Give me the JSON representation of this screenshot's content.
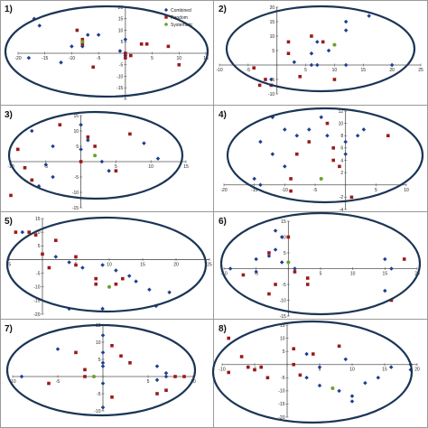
{
  "colors": {
    "combined": "#1f3f8f",
    "random": "#9b1a1a",
    "systematic": "#6aa12c",
    "ellipse": "#1b3556",
    "axis": "#555555",
    "frame": "#9a9a9a"
  },
  "legend": [
    "Combined",
    "Random",
    "Systematic"
  ],
  "chart_data": [
    {
      "type": "scatter",
      "label": "1)",
      "xlim": [
        -20,
        15
      ],
      "ylim": [
        -20,
        20
      ],
      "xticks": [
        -20,
        -15,
        -10,
        -5,
        0,
        5,
        10,
        15
      ],
      "yticks": [
        -20,
        -15,
        -10,
        -5,
        0,
        5,
        10,
        15,
        20
      ],
      "xticklabels": [
        "-20",
        "-15",
        "-10",
        "-5",
        "",
        "5",
        "10",
        "15"
      ],
      "yticklabels": [
        "",
        "-15",
        "-10",
        "-5",
        "",
        "5",
        "10",
        "15",
        "20"
      ],
      "series": [
        {
          "name": "Combined",
          "points": [
            [
              -17,
              15
            ],
            [
              -16,
              12
            ],
            [
              -7,
              8
            ],
            [
              -5,
              8
            ],
            [
              0,
              6
            ],
            [
              -10,
              3
            ],
            [
              -8,
              3
            ],
            [
              0,
              -1
            ],
            [
              -1,
              1
            ],
            [
              -18,
              -2
            ],
            [
              -12,
              -4
            ]
          ]
        },
        {
          "name": "Random",
          "points": [
            [
              -9,
              10
            ],
            [
              -8,
              6
            ],
            [
              -8,
              4
            ],
            [
              3,
              4
            ],
            [
              4,
              4
            ],
            [
              8,
              3
            ],
            [
              0,
              0
            ],
            [
              0,
              -2
            ],
            [
              1,
              -1
            ],
            [
              -6,
              -6
            ],
            [
              10,
              -5
            ]
          ]
        },
        {
          "name": "Systematic",
          "points": [
            [
              -8,
              5
            ]
          ]
        }
      ]
    },
    {
      "type": "scatter",
      "label": "2)",
      "xlim": [
        -10,
        25
      ],
      "ylim": [
        -10,
        20
      ],
      "xticks": [
        -10,
        -5,
        0,
        5,
        10,
        15,
        20,
        25
      ],
      "yticks": [
        -10,
        -5,
        0,
        5,
        10,
        15,
        20
      ],
      "xticklabels": [
        "-10",
        "-5",
        "",
        "5",
        "10",
        "15",
        "20",
        "25"
      ],
      "yticklabels": [
        "-10",
        "-5",
        "",
        "5",
        "10",
        "15",
        "20"
      ],
      "series": [
        {
          "name": "Combined",
          "points": [
            [
              16,
              17
            ],
            [
              12,
              15
            ],
            [
              12,
              12
            ],
            [
              7,
              8
            ],
            [
              9,
              5
            ],
            [
              6,
              0
            ],
            [
              7,
              0
            ],
            [
              12,
              0
            ],
            [
              20,
              0
            ],
            [
              3,
              1
            ],
            [
              6,
              4
            ],
            [
              -1,
              -5
            ]
          ]
        },
        {
          "name": "Random",
          "points": [
            [
              2,
              8
            ],
            [
              6,
              10
            ],
            [
              8,
              8
            ],
            [
              2,
              4
            ],
            [
              -4,
              -1
            ],
            [
              -2,
              -5
            ],
            [
              -3,
              -7
            ],
            [
              -1,
              -7
            ],
            [
              10,
              -5
            ],
            [
              4,
              -4
            ]
          ]
        },
        {
          "name": "Systematic",
          "points": [
            [
              10,
              7
            ]
          ]
        }
      ]
    },
    {
      "type": "scatter",
      "label": "3)",
      "xlim": [
        -10,
        15
      ],
      "ylim": [
        -15,
        15
      ],
      "xticks": [
        -10,
        -5,
        0,
        5,
        10,
        15
      ],
      "yticks": [
        -15,
        -10,
        -5,
        0,
        5,
        10,
        15
      ],
      "xticklabels": [
        "-10",
        "-5",
        "",
        "5",
        "10",
        "15"
      ],
      "yticklabels": [
        "-15",
        "-10",
        "-5",
        "",
        "5",
        "10",
        "15"
      ],
      "series": [
        {
          "name": "Combined",
          "points": [
            [
              -7,
              10
            ],
            [
              -4,
              5
            ],
            [
              0,
              12
            ],
            [
              1,
              7
            ],
            [
              0,
              4
            ],
            [
              3,
              0
            ],
            [
              -5,
              -1
            ],
            [
              -4,
              -5
            ],
            [
              -6,
              -8
            ],
            [
              4,
              -3
            ],
            [
              9,
              6
            ],
            [
              11,
              1
            ]
          ]
        },
        {
          "name": "Random",
          "points": [
            [
              -3,
              12
            ],
            [
              -9,
              4
            ],
            [
              -7,
              -6
            ],
            [
              -10,
              -11
            ],
            [
              0,
              0
            ],
            [
              5,
              -3
            ],
            [
              7,
              9
            ],
            [
              1,
              8
            ],
            [
              -8,
              -2
            ],
            [
              2,
              5
            ]
          ]
        },
        {
          "name": "Systematic",
          "points": [
            [
              2,
              2
            ]
          ]
        }
      ]
    },
    {
      "type": "scatter",
      "label": "4)",
      "xlim": [
        -20,
        10
      ],
      "ylim": [
        -4,
        12
      ],
      "xticks": [
        -20,
        -15,
        -10,
        -5,
        0,
        5,
        10
      ],
      "yticks": [
        -4,
        -2,
        0,
        2,
        4,
        6,
        8,
        10,
        12
      ],
      "xticklabels": [
        "-20",
        "-15",
        "-10",
        "-5",
        "",
        "5",
        "10"
      ],
      "yticklabels": [
        "-4",
        "-2",
        "",
        "2",
        "4",
        "6",
        "8",
        "10",
        "12"
      ],
      "series": [
        {
          "name": "Combined",
          "points": [
            [
              -12,
              11
            ],
            [
              -10,
              9
            ],
            [
              -8,
              8
            ],
            [
              -14,
              7
            ],
            [
              -12,
              5
            ],
            [
              -10,
              3
            ],
            [
              -6,
              9
            ],
            [
              -4,
              11
            ],
            [
              -3,
              8
            ],
            [
              0,
              7
            ],
            [
              2,
              8
            ],
            [
              -15,
              1
            ],
            [
              -14,
              0
            ],
            [
              0,
              5
            ],
            [
              3,
              9
            ]
          ]
        },
        {
          "name": "Random",
          "points": [
            [
              -6,
              7
            ],
            [
              -8,
              5
            ],
            [
              -9,
              1
            ],
            [
              -9,
              -1
            ],
            [
              -2,
              4
            ],
            [
              -1,
              3
            ],
            [
              -2,
              6
            ],
            [
              -3,
              10
            ],
            [
              7,
              8
            ],
            [
              1,
              -2
            ]
          ]
        },
        {
          "name": "Systematic",
          "points": [
            [
              -4,
              1
            ]
          ]
        }
      ]
    },
    {
      "type": "scatter",
      "label": "5)",
      "xlim": [
        -5,
        25
      ],
      "ylim": [
        -20,
        15
      ],
      "xticks": [
        -5,
        0,
        5,
        10,
        15,
        20,
        25
      ],
      "yticks": [
        -20,
        -15,
        -10,
        -5,
        0,
        5,
        10,
        15
      ],
      "xticklabels": [
        "-5",
        "",
        "5",
        "10",
        "15",
        "20",
        "25"
      ],
      "yticklabels": [
        "-20",
        "-15",
        "-10",
        "-5",
        "",
        "5",
        "10",
        "15"
      ],
      "series": [
        {
          "name": "Combined",
          "points": [
            [
              -3,
              10
            ],
            [
              2,
              1
            ],
            [
              4,
              -1
            ],
            [
              6,
              -3
            ],
            [
              9,
              -2
            ],
            [
              11,
              -4
            ],
            [
              13,
              -6
            ],
            [
              14,
              -8
            ],
            [
              16,
              -11
            ],
            [
              17,
              -17
            ],
            [
              19,
              -12
            ],
            [
              9,
              -18
            ],
            [
              4,
              -18
            ]
          ]
        },
        {
          "name": "Random",
          "points": [
            [
              -2,
              10
            ],
            [
              -1,
              9
            ],
            [
              2,
              7
            ],
            [
              0,
              2
            ],
            [
              5,
              1
            ],
            [
              5,
              -2
            ],
            [
              1,
              -3
            ],
            [
              8,
              -7
            ],
            [
              8,
              -9
            ],
            [
              11,
              -9
            ],
            [
              12,
              -7
            ],
            [
              -4,
              10
            ]
          ]
        },
        {
          "name": "Systematic",
          "points": [
            [
              10,
              -10
            ]
          ]
        }
      ]
    },
    {
      "type": "scatter",
      "label": "6)",
      "xlim": [
        -10,
        20
      ],
      "ylim": [
        -15,
        15
      ],
      "xticks": [
        -10,
        -5,
        0,
        5,
        10,
        15,
        20
      ],
      "yticks": [
        -15,
        -10,
        -5,
        0,
        5,
        10,
        15
      ],
      "xticklabels": [
        "-10",
        "-5",
        "",
        "5",
        "10",
        "15",
        "20"
      ],
      "yticklabels": [
        "-15",
        "-10",
        "-5",
        "",
        "5",
        "10",
        "15"
      ],
      "series": [
        {
          "name": "Combined",
          "points": [
            [
              -2,
              12
            ],
            [
              -1,
              10
            ],
            [
              -2,
              6
            ],
            [
              -3,
              4
            ],
            [
              -1,
              2
            ],
            [
              -5,
              3
            ],
            [
              -9,
              0
            ],
            [
              -5,
              -1
            ],
            [
              1,
              0
            ],
            [
              15,
              3
            ],
            [
              16,
              0
            ],
            [
              15,
              -7
            ]
          ]
        },
        {
          "name": "Random",
          "points": [
            [
              0,
              10
            ],
            [
              -3,
              5
            ],
            [
              -7,
              -2
            ],
            [
              -2,
              -5
            ],
            [
              -3,
              -8
            ],
            [
              1,
              -1
            ],
            [
              3,
              -3
            ],
            [
              3,
              -5
            ],
            [
              18,
              3
            ],
            [
              16,
              -10
            ]
          ]
        },
        {
          "name": "Systematic",
          "points": [
            [
              0,
              2
            ]
          ]
        }
      ]
    },
    {
      "type": "scatter",
      "label": "7)",
      "xlim": [
        -10,
        10
      ],
      "ylim": [
        -10,
        15
      ],
      "xticks": [
        -10,
        -5,
        0,
        5,
        10
      ],
      "yticks": [
        -10,
        -5,
        0,
        5,
        10,
        15
      ],
      "xticklabels": [
        "-10",
        "-5",
        "",
        "5",
        "10"
      ],
      "yticklabels": [
        "-10",
        "-5",
        "",
        "5",
        "10",
        "15"
      ],
      "series": [
        {
          "name": "Combined",
          "points": [
            [
              -5,
              8
            ],
            [
              -9,
              0
            ],
            [
              0,
              12
            ],
            [
              0,
              7
            ],
            [
              0,
              4
            ],
            [
              0,
              3
            ],
            [
              0,
              -2
            ],
            [
              0,
              -9
            ],
            [
              6,
              3
            ],
            [
              7,
              1
            ],
            [
              7,
              0
            ],
            [
              6,
              -1
            ]
          ]
        },
        {
          "name": "Random",
          "points": [
            [
              -3,
              7
            ],
            [
              -2,
              2
            ],
            [
              -2,
              0
            ],
            [
              1,
              9
            ],
            [
              2,
              6
            ],
            [
              3,
              4
            ],
            [
              -6,
              -2
            ],
            [
              1,
              -6
            ],
            [
              6,
              -5
            ],
            [
              7,
              -4
            ],
            [
              8,
              0
            ],
            [
              9,
              0
            ]
          ]
        },
        {
          "name": "Systematic",
          "points": [
            [
              -1,
              0
            ]
          ]
        }
      ]
    },
    {
      "type": "scatter",
      "label": "8)",
      "xlim": [
        -10,
        20
      ],
      "ylim": [
        -20,
        15
      ],
      "xticks": [
        -10,
        -5,
        0,
        5,
        10,
        15,
        20
      ],
      "yticks": [
        -20,
        -15,
        -10,
        -5,
        0,
        5,
        10,
        15
      ],
      "xticklabels": [
        "-10",
        "-5",
        "",
        "5",
        "10",
        "15",
        "20"
      ],
      "yticklabels": [
        "-20",
        "-15",
        "-10",
        "-5",
        "",
        "5",
        "10",
        "15"
      ],
      "series": [
        {
          "name": "Combined",
          "points": [
            [
              3,
              4
            ],
            [
              5,
              -1
            ],
            [
              3,
              -5
            ],
            [
              5,
              -8
            ],
            [
              8,
              -10
            ],
            [
              10,
              -12
            ],
            [
              10,
              -14
            ],
            [
              14,
              -5
            ],
            [
              12,
              -7
            ],
            [
              16,
              -1
            ],
            [
              19,
              0
            ],
            [
              19,
              -2
            ],
            [
              9,
              2
            ]
          ]
        },
        {
          "name": "Random",
          "points": [
            [
              -9,
              10
            ],
            [
              -7,
              3
            ],
            [
              -9,
              -3
            ],
            [
              -6,
              -1
            ],
            [
              -5,
              -2
            ],
            [
              -3,
              -5
            ],
            [
              1,
              6
            ],
            [
              4,
              4
            ],
            [
              8,
              7
            ],
            [
              -4,
              -1
            ],
            [
              2,
              -4
            ],
            [
              1,
              0
            ]
          ]
        },
        {
          "name": "Systematic",
          "points": [
            [
              7,
              -9
            ]
          ]
        }
      ]
    }
  ]
}
